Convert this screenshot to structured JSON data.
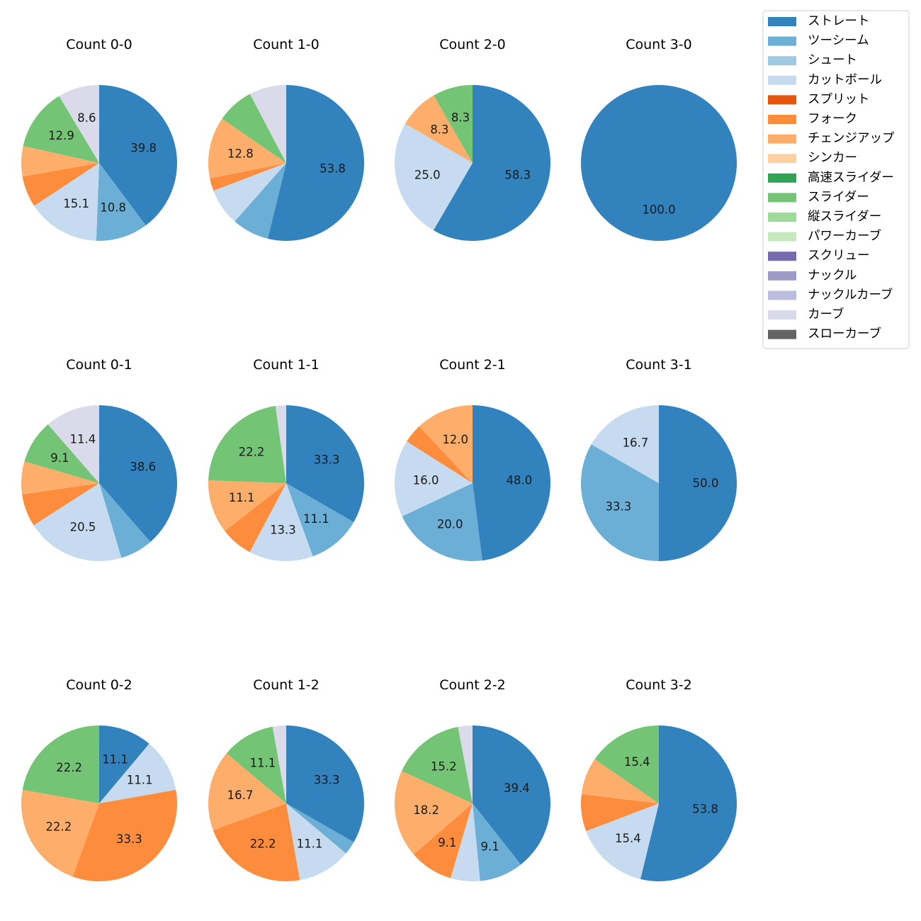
{
  "legend": {
    "items": [
      {
        "name": "ストレート",
        "color": "#3182bd"
      },
      {
        "name": "ツーシーム",
        "color": "#6baed6"
      },
      {
        "name": "シュート",
        "color": "#9ecae1"
      },
      {
        "name": "カットボール",
        "color": "#c6dbef"
      },
      {
        "name": "スプリット",
        "color": "#e6550d"
      },
      {
        "name": "フォーク",
        "color": "#fd8d3c"
      },
      {
        "name": "チェンジアップ",
        "color": "#fdae6b"
      },
      {
        "name": "シンカー",
        "color": "#fdd0a2"
      },
      {
        "name": "高速スライダー",
        "color": "#31a354"
      },
      {
        "name": "スライダー",
        "color": "#74c476"
      },
      {
        "name": "縦スライダー",
        "color": "#a1d99b"
      },
      {
        "name": "パワーカーブ",
        "color": "#c7e9c0"
      },
      {
        "name": "スクリュー",
        "color": "#756bb1"
      },
      {
        "name": "ナックル",
        "color": "#9e9ac8"
      },
      {
        "name": "ナックルカーブ",
        "color": "#bcbddc"
      },
      {
        "name": "カーブ",
        "color": "#dadaeb"
      },
      {
        "name": "スローカーブ",
        "color": "#636363"
      }
    ]
  },
  "chart_data": [
    {
      "type": "pie",
      "title": "Count 0-0",
      "labels": [
        "ストレート",
        "ツーシーム",
        "カットボール",
        "フォーク",
        "チェンジアップ",
        "スライダー",
        "カーブ"
      ],
      "values": [
        39.8,
        10.8,
        15.1,
        6.5,
        6.3,
        12.9,
        8.6
      ],
      "data_labels": [
        "39.8",
        "10.8",
        "15.1",
        "",
        "",
        "12.9",
        "8.6"
      ]
    },
    {
      "type": "pie",
      "title": "Count 1-0",
      "labels": [
        "ストレート",
        "ツーシーム",
        "カットボール",
        "フォーク",
        "チェンジアップ",
        "スライダー",
        "カーブ"
      ],
      "values": [
        53.8,
        7.7,
        7.7,
        2.6,
        12.8,
        7.7,
        7.7
      ],
      "data_labels": [
        "53.8",
        "",
        "",
        "",
        "12.8",
        "",
        ""
      ]
    },
    {
      "type": "pie",
      "title": "Count 2-0",
      "labels": [
        "ストレート",
        "カットボール",
        "チェンジアップ",
        "スライダー"
      ],
      "values": [
        58.3,
        25.0,
        8.3,
        8.3
      ],
      "data_labels": [
        "58.3",
        "25.0",
        "8.3",
        "8.3"
      ]
    },
    {
      "type": "pie",
      "title": "Count 3-0",
      "labels": [
        "ストレート"
      ],
      "values": [
        100.0
      ],
      "data_labels": [
        "100.0"
      ]
    },
    {
      "type": "pie",
      "title": "Count 0-1",
      "labels": [
        "ストレート",
        "ツーシーム",
        "カットボール",
        "フォーク",
        "チェンジアップ",
        "スライダー",
        "カーブ"
      ],
      "values": [
        38.6,
        6.8,
        20.5,
        6.8,
        6.8,
        9.1,
        11.4
      ],
      "data_labels": [
        "38.6",
        "",
        "20.5",
        "",
        "",
        "9.1",
        "11.4"
      ]
    },
    {
      "type": "pie",
      "title": "Count 1-1",
      "labels": [
        "ストレート",
        "ツーシーム",
        "カットボール",
        "フォーク",
        "チェンジアップ",
        "スライダー",
        "カーブ"
      ],
      "values": [
        33.3,
        11.1,
        13.3,
        6.7,
        11.1,
        22.2,
        2.2
      ],
      "data_labels": [
        "33.3",
        "11.1",
        "13.3",
        "",
        "11.1",
        "22.2",
        ""
      ]
    },
    {
      "type": "pie",
      "title": "Count 2-1",
      "labels": [
        "ストレート",
        "ツーシーム",
        "カットボール",
        "フォーク",
        "チェンジアップ"
      ],
      "values": [
        48.0,
        20.0,
        16.0,
        4.0,
        12.0
      ],
      "data_labels": [
        "48.0",
        "20.0",
        "16.0",
        "",
        "12.0"
      ]
    },
    {
      "type": "pie",
      "title": "Count 3-1",
      "labels": [
        "ストレート",
        "ツーシーム",
        "カットボール"
      ],
      "values": [
        50.0,
        33.3,
        16.7
      ],
      "data_labels": [
        "50.0",
        "33.3",
        "16.7"
      ]
    },
    {
      "type": "pie",
      "title": "Count 0-2",
      "labels": [
        "ストレート",
        "カットボール",
        "フォーク",
        "チェンジアップ",
        "スライダー"
      ],
      "values": [
        11.1,
        11.1,
        33.3,
        22.2,
        22.2
      ],
      "data_labels": [
        "11.1",
        "11.1",
        "33.3",
        "22.2",
        "22.2"
      ]
    },
    {
      "type": "pie",
      "title": "Count 1-2",
      "labels": [
        "ストレート",
        "ツーシーム",
        "カットボール",
        "フォーク",
        "チェンジアップ",
        "スライダー",
        "カーブ"
      ],
      "values": [
        33.3,
        2.8,
        11.1,
        22.2,
        16.7,
        11.1,
        2.8
      ],
      "data_labels": [
        "33.3",
        "",
        "11.1",
        "22.2",
        "16.7",
        "11.1",
        ""
      ]
    },
    {
      "type": "pie",
      "title": "Count 2-2",
      "labels": [
        "ストレート",
        "ツーシーム",
        "カットボール",
        "フォーク",
        "チェンジアップ",
        "スライダー",
        "カーブ"
      ],
      "values": [
        39.4,
        9.1,
        6.1,
        9.1,
        18.2,
        15.2,
        3.0
      ],
      "data_labels": [
        "39.4",
        "9.1",
        "",
        "9.1",
        "18.2",
        "15.2",
        ""
      ]
    },
    {
      "type": "pie",
      "title": "Count 3-2",
      "labels": [
        "ストレート",
        "カットボール",
        "フォーク",
        "チェンジアップ",
        "スライダー"
      ],
      "values": [
        53.8,
        15.4,
        7.7,
        7.7,
        15.4
      ],
      "data_labels": [
        "53.8",
        "15.4",
        "",
        "",
        "15.4"
      ]
    }
  ]
}
